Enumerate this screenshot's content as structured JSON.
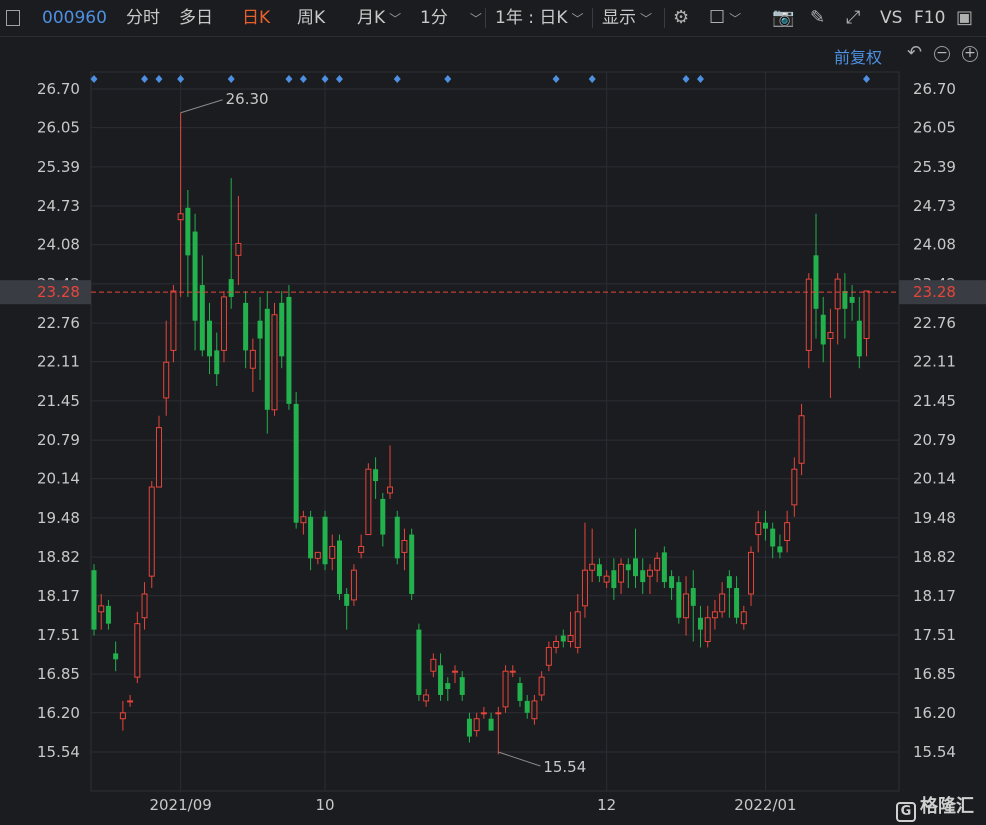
{
  "toolbar": {
    "code": "000960",
    "tabs": [
      "分时",
      "多日",
      "日K",
      "周K",
      "月K",
      "1分"
    ],
    "active_tab": "日K",
    "range": "1年 : 日K",
    "display": "显示",
    "vs": "VS",
    "f10": "F10"
  },
  "adjust_label": "前复权",
  "logo_text": "格隆汇",
  "logo_mark": "G",
  "current_price": "23.28",
  "chart_data": {
    "type": "candlestick",
    "y_ticks": [
      26.7,
      26.05,
      25.39,
      24.73,
      24.08,
      23.42,
      22.76,
      22.11,
      21.45,
      20.79,
      20.14,
      19.48,
      18.82,
      18.17,
      17.51,
      16.85,
      16.2,
      15.54
    ],
    "y_range": [
      15.54,
      26.7
    ],
    "x_labels": [
      {
        "label": "2021/09",
        "index": 12
      },
      {
        "label": "10",
        "index": 32
      },
      {
        "label": "12",
        "index": 71
      },
      {
        "label": "2022/01",
        "index": 93
      }
    ],
    "current_price": 23.28,
    "max_label": {
      "value": "26.30",
      "index": 12
    },
    "min_label": {
      "value": "15.54",
      "index": 56
    },
    "marker_indices": [
      0,
      7,
      9,
      12,
      19,
      27,
      29,
      32,
      34,
      42,
      49,
      64,
      69,
      82,
      84,
      107
    ],
    "candles": [
      [
        18.6,
        17.6,
        18.7,
        17.5
      ],
      [
        17.9,
        18.0,
        18.2,
        17.6
      ],
      [
        18.0,
        17.7,
        18.1,
        17.6
      ],
      [
        17.2,
        17.1,
        17.4,
        16.9
      ],
      [
        16.1,
        16.2,
        16.4,
        15.9
      ],
      [
        16.4,
        16.4,
        16.5,
        16.3
      ],
      [
        16.8,
        17.7,
        17.9,
        16.7
      ],
      [
        17.8,
        18.2,
        18.4,
        17.6
      ],
      [
        18.5,
        20.0,
        20.1,
        18.3
      ],
      [
        20.0,
        21.0,
        21.2,
        20.2
      ],
      [
        21.5,
        22.1,
        22.8,
        21.2
      ],
      [
        22.3,
        23.3,
        23.4,
        22.1
      ],
      [
        24.5,
        24.6,
        26.3,
        23.2
      ],
      [
        24.7,
        23.9,
        25.0,
        23.2
      ],
      [
        24.3,
        22.8,
        24.6,
        22.3
      ],
      [
        23.4,
        22.3,
        23.9,
        22.2
      ],
      [
        22.8,
        22.2,
        23.1,
        21.9
      ],
      [
        22.3,
        21.9,
        22.6,
        21.7
      ],
      [
        22.3,
        23.2,
        23.3,
        22.1
      ],
      [
        23.5,
        23.2,
        25.2,
        23.0
      ],
      [
        23.9,
        24.1,
        24.9,
        23.4
      ],
      [
        23.1,
        22.3,
        23.3,
        22.0
      ],
      [
        22.0,
        22.3,
        22.5,
        21.6
      ],
      [
        22.8,
        22.5,
        23.2,
        21.8
      ],
      [
        23.0,
        21.3,
        23.3,
        20.9
      ],
      [
        21.3,
        22.9,
        23.1,
        21.2
      ],
      [
        23.1,
        22.2,
        23.3,
        22.0
      ],
      [
        23.2,
        21.4,
        23.4,
        21.3
      ],
      [
        21.4,
        19.4,
        21.6,
        19.3
      ],
      [
        19.4,
        19.5,
        19.6,
        19.2
      ],
      [
        19.5,
        18.8,
        19.6,
        18.6
      ],
      [
        18.8,
        18.9,
        18.9,
        18.7
      ],
      [
        19.5,
        18.7,
        19.6,
        18.6
      ],
      [
        18.8,
        19.0,
        19.2,
        18.6
      ],
      [
        19.1,
        18.2,
        19.2,
        18.1
      ],
      [
        18.2,
        18.0,
        18.3,
        17.6
      ],
      [
        18.1,
        18.6,
        18.7,
        18.0
      ],
      [
        18.9,
        19.0,
        19.2,
        18.8
      ],
      [
        19.2,
        20.3,
        20.4,
        19.2
      ],
      [
        20.3,
        20.1,
        20.5,
        19.8
      ],
      [
        19.8,
        19.2,
        19.9,
        19.0
      ],
      [
        19.9,
        20.0,
        20.7,
        19.8
      ],
      [
        19.5,
        18.8,
        19.6,
        18.7
      ],
      [
        18.9,
        19.1,
        19.3,
        18.6
      ],
      [
        19.2,
        18.2,
        19.3,
        18.1
      ],
      [
        17.6,
        16.5,
        17.7,
        16.4
      ],
      [
        16.4,
        16.5,
        16.6,
        16.3
      ],
      [
        16.9,
        17.1,
        17.2,
        16.8
      ],
      [
        17.0,
        16.5,
        17.2,
        16.4
      ],
      [
        16.7,
        16.6,
        16.8,
        16.4
      ],
      [
        16.9,
        16.9,
        17.0,
        16.7
      ],
      [
        16.8,
        16.5,
        16.9,
        16.4
      ],
      [
        16.1,
        15.8,
        16.2,
        15.7
      ],
      [
        15.9,
        16.1,
        16.2,
        15.8
      ],
      [
        16.2,
        16.2,
        16.3,
        16.1
      ],
      [
        16.1,
        15.9,
        16.2,
        15.9
      ],
      [
        16.2,
        16.2,
        16.3,
        15.5
      ],
      [
        16.3,
        16.9,
        17.0,
        16.2
      ],
      [
        16.9,
        16.9,
        17.0,
        16.8
      ],
      [
        16.7,
        16.4,
        16.8,
        16.3
      ],
      [
        16.4,
        16.2,
        16.5,
        16.1
      ],
      [
        16.1,
        16.4,
        16.5,
        16.0
      ],
      [
        16.5,
        16.8,
        16.9,
        16.4
      ],
      [
        17.0,
        17.3,
        17.4,
        16.9
      ],
      [
        17.3,
        17.4,
        17.5,
        17.2
      ],
      [
        17.5,
        17.4,
        17.6,
        17.3
      ],
      [
        17.4,
        17.5,
        17.9,
        17.3
      ],
      [
        17.3,
        17.9,
        18.2,
        17.2
      ],
      [
        18.0,
        18.6,
        19.4,
        17.8
      ],
      [
        18.6,
        18.7,
        19.3,
        18.4
      ],
      [
        18.7,
        18.5,
        18.8,
        18.4
      ],
      [
        18.4,
        18.5,
        18.6,
        18.3
      ],
      [
        18.6,
        18.3,
        18.8,
        18.1
      ],
      [
        18.4,
        18.7,
        18.8,
        18.2
      ],
      [
        18.7,
        18.6,
        18.8,
        18.3
      ],
      [
        18.8,
        18.5,
        19.3,
        18.3
      ],
      [
        18.6,
        18.4,
        18.8,
        18.2
      ],
      [
        18.5,
        18.6,
        18.7,
        18.2
      ],
      [
        18.6,
        18.8,
        18.9,
        18.4
      ],
      [
        18.9,
        18.4,
        19.0,
        18.3
      ],
      [
        18.5,
        18.3,
        18.6,
        18.1
      ],
      [
        18.4,
        17.8,
        18.5,
        17.7
      ],
      [
        17.8,
        18.2,
        18.5,
        17.5
      ],
      [
        18.3,
        18.0,
        18.6,
        17.4
      ],
      [
        17.8,
        17.6,
        18.0,
        17.3
      ],
      [
        17.4,
        17.8,
        18.0,
        17.3
      ],
      [
        17.8,
        17.9,
        18.1,
        17.6
      ],
      [
        17.9,
        18.2,
        18.4,
        17.8
      ],
      [
        18.5,
        18.3,
        18.6,
        17.8
      ],
      [
        18.3,
        17.8,
        18.5,
        17.7
      ],
      [
        17.7,
        17.9,
        18.0,
        17.6
      ],
      [
        18.2,
        18.9,
        19.0,
        18.0
      ],
      [
        19.2,
        19.4,
        19.6,
        18.9
      ],
      [
        19.4,
        19.3,
        19.6,
        19.1
      ],
      [
        19.3,
        19.0,
        19.4,
        18.8
      ],
      [
        19.0,
        18.9,
        19.2,
        18.8
      ],
      [
        19.1,
        19.4,
        19.6,
        18.9
      ],
      [
        19.7,
        20.3,
        20.5,
        19.5
      ],
      [
        20.4,
        21.2,
        21.4,
        20.2
      ],
      [
        22.3,
        23.5,
        23.6,
        22.0
      ],
      [
        23.9,
        23.0,
        24.6,
        22.5
      ],
      [
        22.9,
        22.4,
        23.2,
        22.1
      ],
      [
        22.5,
        22.6,
        23.0,
        21.5
      ],
      [
        23.0,
        23.5,
        23.6,
        22.4
      ],
      [
        23.3,
        23.0,
        23.6,
        22.5
      ],
      [
        23.2,
        23.1,
        23.4,
        22.8
      ],
      [
        22.8,
        22.2,
        23.2,
        22.0
      ],
      [
        22.5,
        23.3,
        23.3,
        22.2
      ]
    ]
  }
}
